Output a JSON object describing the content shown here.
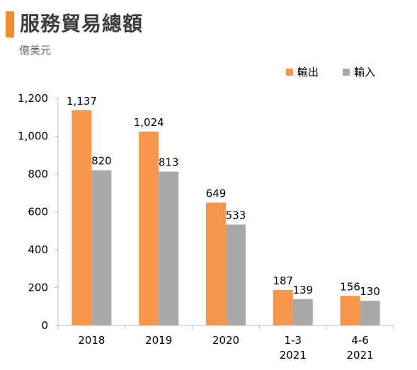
{
  "title": "服務貿易總額",
  "subtitle": "億美元",
  "colors": {
    "accent": "#F28C28",
    "export": "#F7964A",
    "import": "#A9A9A9",
    "axis": "#bfbfbf",
    "text": "#000000"
  },
  "chart_data": {
    "type": "bar",
    "categories": [
      [
        "2018"
      ],
      [
        "2019"
      ],
      [
        "2020"
      ],
      [
        "1-3",
        "2021"
      ],
      [
        "4-6",
        "2021"
      ]
    ],
    "series": [
      {
        "name": "輸出",
        "values": [
          1137,
          1024,
          649,
          187,
          156
        ],
        "labels": [
          "1,137",
          "1,024",
          "649",
          "187",
          "156"
        ]
      },
      {
        "name": "輸入",
        "values": [
          820,
          813,
          533,
          139,
          130
        ],
        "labels": [
          "820",
          "813",
          "533",
          "139",
          "130"
        ]
      }
    ],
    "ylim": [
      0,
      1200
    ],
    "yticks": [
      0,
      200,
      400,
      600,
      800,
      1000,
      1200
    ],
    "ytick_labels": [
      "0",
      "200",
      "400",
      "600",
      "800",
      "1,000",
      "1,200"
    ],
    "grid": false,
    "legend": "top-right"
  }
}
